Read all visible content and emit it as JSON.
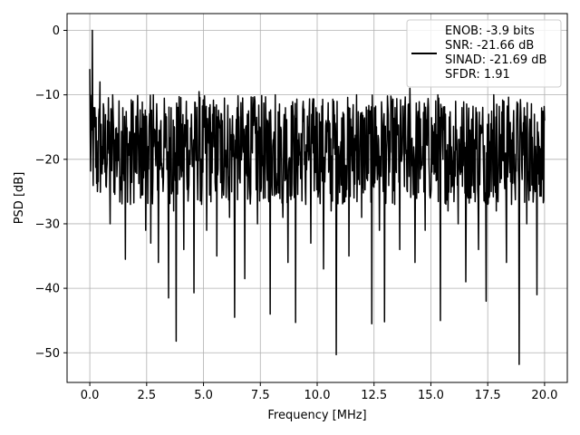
{
  "chart_data": {
    "type": "line",
    "title": "",
    "xlabel": "Frequency [MHz]",
    "ylabel": "PSD [dB]",
    "xlim": [
      -1.0,
      21.0
    ],
    "ylim": [
      -54.6,
      2.6
    ],
    "x_ticks": [
      0.0,
      2.5,
      5.0,
      7.5,
      10.0,
      12.5,
      15.0,
      17.5,
      20.0
    ],
    "x_tick_labels": [
      "0.0",
      "2.5",
      "5.0",
      "7.5",
      "10.0",
      "12.5",
      "15.0",
      "17.5",
      "20.0"
    ],
    "y_ticks": [
      0,
      -10,
      -20,
      -30,
      -40,
      -50
    ],
    "y_tick_labels": [
      "0",
      "−10",
      "−20",
      "−30",
      "−40",
      "−50"
    ],
    "grid": true,
    "legend_position": "top-right",
    "legend_lines": [
      "ENOB: -3.9 bits",
      "SNR: -21.66 dB",
      "SINAD: -21.69 dB",
      "SFDR: 1.91"
    ],
    "series": [
      {
        "color": "#000000",
        "x_start": 0.0,
        "x_end": 20.0,
        "noise_band_db": [
          -27,
          -10
        ],
        "values": [
          -6,
          0,
          -12,
          -25,
          -8,
          -18,
          -22,
          -14,
          -30,
          -10,
          -20,
          -16,
          -24,
          -12,
          -35.5,
          -19,
          -27,
          -11,
          -22,
          -15,
          -26,
          -13,
          -31,
          -18,
          -33,
          -10,
          -21,
          -36,
          -14,
          -23,
          -17,
          -41.5,
          -12,
          -28,
          -48.2,
          -16,
          -20,
          -34,
          -11,
          -24,
          -13,
          -40.7,
          -19,
          -9.5,
          -27,
          -15,
          -31,
          -12,
          -22,
          -18,
          -35,
          -14,
          -26,
          -10.5,
          -21,
          -29,
          -16,
          -44.5,
          -12,
          -23,
          -17,
          -38.5,
          -13,
          -25,
          -19,
          -11,
          -30,
          -15,
          -21,
          -26,
          -14,
          -44,
          -18,
          -10,
          -24,
          -16,
          -29,
          -12,
          -36,
          -20,
          -13,
          -45.3,
          -17,
          -23,
          -11,
          -27,
          -15,
          -33,
          -19,
          -12,
          -25,
          -16,
          -37,
          -14,
          -22,
          -28,
          -11,
          -50.3,
          -18,
          -24,
          -13,
          -21,
          -35,
          -15,
          -26,
          -10,
          -19,
          -29,
          -14,
          -23,
          -16,
          -45.5,
          -12,
          -20,
          -31,
          -13,
          -45.2,
          -17,
          -22,
          -11,
          -27,
          -15,
          -34,
          -19,
          -12,
          -25,
          -9,
          -21,
          -36,
          -14,
          -23,
          -18,
          -31,
          -12,
          -26,
          -16,
          -22,
          -10,
          -45,
          -20,
          -13,
          -28,
          -17,
          -24,
          -11,
          -30,
          -15,
          -21,
          -39,
          -14,
          -26,
          -19,
          -12,
          -34,
          -16,
          -22,
          -42,
          -13,
          -25,
          -10,
          -28,
          -17,
          -23,
          -11,
          -36,
          -15,
          -27,
          -19,
          -14,
          -51.8,
          -21,
          -12,
          -30,
          -16,
          -24,
          -13,
          -41,
          -18,
          -22,
          -14
        ]
      }
    ]
  },
  "colors": {
    "line": "#000000",
    "grid": "#b0b0b0",
    "legend_border": "#cccccc"
  }
}
